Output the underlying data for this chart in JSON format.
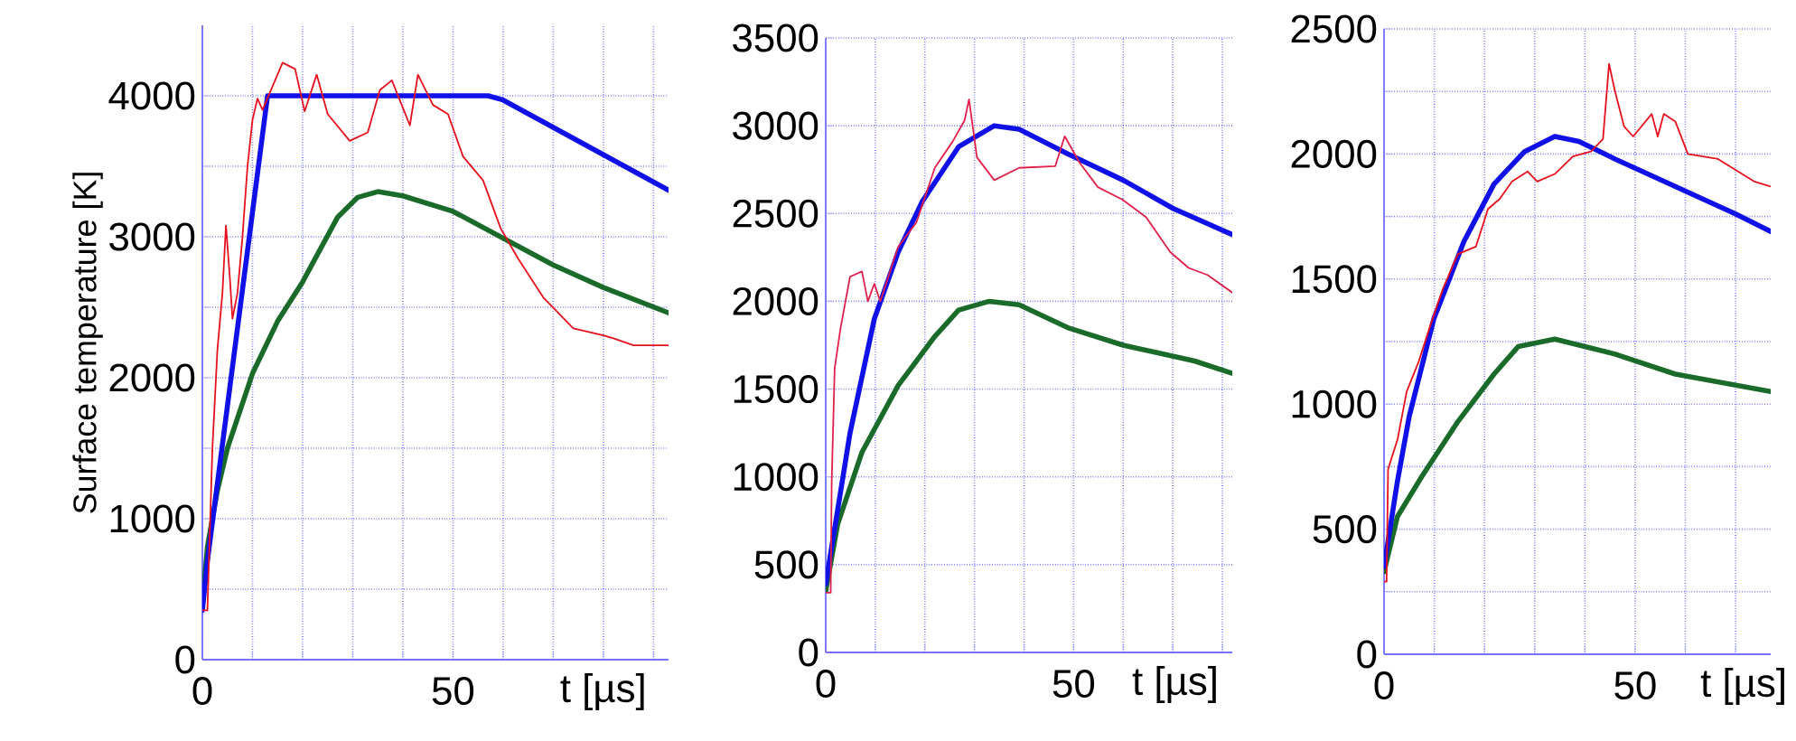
{
  "chart_data": [
    {
      "type": "line",
      "xlabel": "t [µs]",
      "ylabel": "Surface temperature [K]",
      "xlim": [
        0,
        93
      ],
      "ylim": [
        0,
        4500
      ],
      "grid": true,
      "xticks": [
        0,
        {
          "value": 10,
          "label": null
        },
        {
          "value": 20,
          "label": null
        },
        {
          "value": 30,
          "label": null
        },
        {
          "value": 40,
          "label": null
        },
        50,
        {
          "value": 60,
          "label": null
        },
        {
          "value": 70,
          "label": null
        },
        {
          "value": 80,
          "label": null
        },
        {
          "value": 90,
          "label": null
        }
      ],
      "yticks": [
        0,
        {
          "value": 500,
          "label": null
        },
        1000,
        {
          "value": 1500,
          "label": null
        },
        2000,
        {
          "value": 2500,
          "label": null
        },
        3000,
        {
          "value": 3500,
          "label": null
        },
        4000
      ],
      "series": [
        {
          "color": "#1a6b2a",
          "x": [
            0,
            1,
            3,
            5,
            10,
            15,
            20,
            27,
            31,
            35,
            40,
            50,
            60,
            70,
            80,
            93
          ],
          "values": [
            400,
            800,
            1200,
            1500,
            2030,
            2400,
            2680,
            3140,
            3280,
            3320,
            3290,
            3180,
            2990,
            2800,
            2640,
            2460
          ]
        },
        {
          "color": "#1010e8",
          "x": [
            0,
            1,
            13,
            57,
            60,
            93
          ],
          "values": [
            350,
            700,
            4000,
            4000,
            3970,
            3330
          ]
        },
        {
          "color": "#e8101c",
          "x": [
            0,
            1,
            2,
            3,
            4,
            4.7,
            5.5,
            6,
            7,
            8,
            9,
            10,
            11,
            12,
            16,
            18.5,
            20.4,
            22.8,
            25,
            29.4,
            33,
            35.4,
            37.8,
            41.4,
            43,
            46,
            49,
            52,
            56,
            59.5,
            63,
            68,
            74,
            80,
            82,
            86,
            93
          ],
          "values": [
            350,
            350,
            1500,
            2200,
            2600,
            3080,
            2700,
            2420,
            2600,
            3000,
            3500,
            3830,
            3980,
            3900,
            4235,
            4190,
            3890,
            4150,
            3870,
            3680,
            3740,
            4040,
            4110,
            3790,
            4150,
            3935,
            3870,
            3570,
            3400,
            3060,
            2845,
            2570,
            2350,
            2300,
            2280,
            2230,
            2230
          ]
        }
      ]
    },
    {
      "type": "line",
      "xlabel": "t [µs]",
      "xlim": [
        0,
        82
      ],
      "ylim": [
        0,
        3500
      ],
      "grid": true,
      "xticks": [
        0,
        {
          "value": 10,
          "label": null
        },
        {
          "value": 20,
          "label": null
        },
        {
          "value": 30,
          "label": null
        },
        {
          "value": 40,
          "label": null
        },
        50,
        {
          "value": 60,
          "label": null
        },
        {
          "value": 70,
          "label": null
        },
        {
          "value": 80,
          "label": null
        }
      ],
      "yticks": [
        0,
        500,
        1000,
        1500,
        2000,
        2500,
        3000,
        3500
      ],
      "series": [
        {
          "color": "#1a6b2a",
          "x": [
            0,
            2.4,
            7.3,
            14.6,
            22,
            26.8,
            33,
            39,
            48.8,
            60,
            74.4,
            82
          ],
          "values": [
            350,
            730,
            1140,
            1520,
            1800,
            1950,
            2000,
            1980,
            1850,
            1750,
            1660,
            1590
          ]
        },
        {
          "color": "#1010e8",
          "x": [
            0,
            4.9,
            9.8,
            14.6,
            19.5,
            26.8,
            34,
            39,
            48.8,
            60,
            70,
            82
          ],
          "values": [
            390,
            1250,
            1900,
            2280,
            2570,
            2880,
            3000,
            2980,
            2840,
            2690,
            2530,
            2380
          ]
        },
        {
          "color": "#e0204a",
          "x": [
            0,
            1,
            1.2,
            1.8,
            3,
            4.9,
            7.3,
            8.5,
            9.8,
            11,
            14.6,
            18.3,
            22,
            25.6,
            28,
            28.9,
            30.5,
            34,
            39,
            46.3,
            48.2,
            51.2,
            54.9,
            59.8,
            64.6,
            69.5,
            73.2,
            77,
            82
          ],
          "values": [
            340,
            340,
            970,
            1620,
            1850,
            2140,
            2170,
            2000,
            2100,
            2000,
            2310,
            2450,
            2760,
            2910,
            3030,
            3150,
            2820,
            2690,
            2760,
            2770,
            2940,
            2790,
            2650,
            2580,
            2480,
            2280,
            2190,
            2150,
            2050
          ]
        }
      ]
    },
    {
      "type": "line",
      "xlabel": "t [µs]",
      "xlim": [
        0,
        77
      ],
      "ylim": [
        0,
        2500
      ],
      "grid": true,
      "xticks": [
        0,
        {
          "value": 10,
          "label": null
        },
        {
          "value": 20,
          "label": null
        },
        {
          "value": 30,
          "label": null
        },
        {
          "value": 40,
          "label": null
        },
        50,
        {
          "value": 60,
          "label": null
        },
        {
          "value": 70,
          "label": null
        }
      ],
      "yticks": [
        0,
        {
          "value": 250,
          "label": null
        },
        500,
        {
          "value": 750,
          "label": null
        },
        1000,
        {
          "value": 1250,
          "label": null
        },
        1500,
        {
          "value": 1750,
          "label": null
        },
        2000,
        {
          "value": 2250,
          "label": null
        },
        2500
      ],
      "series": [
        {
          "color": "#1a6b2a",
          "x": [
            0,
            2.65,
            7.5,
            14.7,
            21.9,
            26.7,
            34,
            46,
            58,
            77
          ],
          "values": [
            330,
            550,
            710,
            930,
            1120,
            1230,
            1260,
            1200,
            1120,
            1050
          ]
        },
        {
          "color": "#1010e8",
          "x": [
            0,
            2.65,
            5,
            9.9,
            15.9,
            21.9,
            28,
            34,
            38.8,
            46,
            58,
            70,
            77
          ],
          "values": [
            350,
            690,
            950,
            1340,
            1650,
            1880,
            2010,
            2070,
            2050,
            1980,
            1870,
            1760,
            1690
          ]
        },
        {
          "color": "#e8101c",
          "x": [
            0,
            0.5,
            0.8,
            2.7,
            4.5,
            6.9,
            9.3,
            11.7,
            14.7,
            18.3,
            20.7,
            23,
            25.5,
            28.6,
            30.5,
            34,
            37.6,
            41.2,
            43.6,
            44.8,
            46,
            47.8,
            49.6,
            53.3,
            54.5,
            55.7,
            58,
            60.5,
            66.5,
            71.3,
            73.7,
            77
          ],
          "values": [
            290,
            290,
            740,
            860,
            1050,
            1170,
            1320,
            1460,
            1600,
            1630,
            1780,
            1820,
            1890,
            1930,
            1890,
            1920,
            1990,
            2010,
            2060,
            2360,
            2250,
            2110,
            2070,
            2160,
            2070,
            2160,
            2130,
            2000,
            1980,
            1920,
            1890,
            1870
          ]
        }
      ]
    }
  ]
}
